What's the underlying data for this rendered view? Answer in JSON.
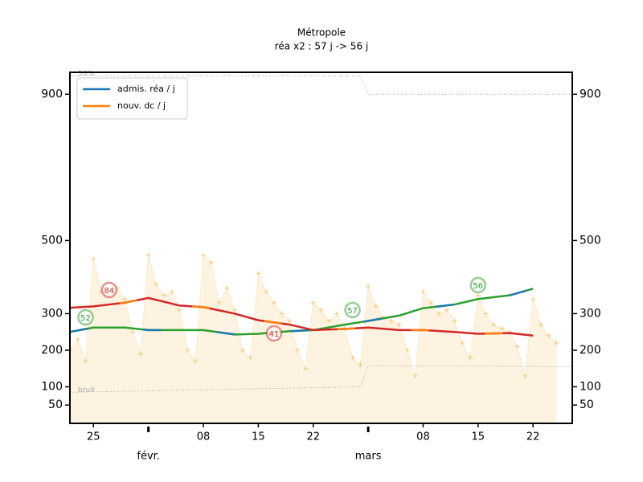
{
  "chart_data": {
    "type": "line",
    "title": "Métropole",
    "subtitle": "réa x2 : 57 j -> 56 j",
    "xlim": [
      "01-22",
      "03-27"
    ],
    "ylim": [
      0,
      960
    ],
    "yticks": [
      50,
      100,
      200,
      300,
      500,
      900
    ],
    "xticks": [
      {
        "value": "01-25",
        "label": "25"
      },
      {
        "value": "02-08",
        "label": "08"
      },
      {
        "value": "02-15",
        "label": "15"
      },
      {
        "value": "02-22",
        "label": "22"
      },
      {
        "value": "03-08",
        "label": "08"
      },
      {
        "value": "03-15",
        "label": "15"
      },
      {
        "value": "03-22",
        "label": "22"
      }
    ],
    "month_ticks": [
      {
        "value": "02-01",
        "label": "févr."
      },
      {
        "value": "03-01",
        "label": "mars"
      }
    ],
    "legend": "upper left",
    "raw": {
      "color": "#f5c97a",
      "fill": "#fdf3e0",
      "x": [
        "01-22",
        "01-23",
        "01-24",
        "01-25",
        "01-26",
        "01-27",
        "01-28",
        "01-29",
        "01-30",
        "01-31",
        "02-01",
        "02-02",
        "02-03",
        "02-04",
        "02-05",
        "02-06",
        "02-07",
        "02-08",
        "02-09",
        "02-10",
        "02-11",
        "02-12",
        "02-13",
        "02-14",
        "02-15",
        "02-16",
        "02-17",
        "02-18",
        "02-19",
        "02-20",
        "02-21",
        "02-22",
        "02-23",
        "02-24",
        "02-25",
        "02-26",
        "02-27",
        "02-28",
        "03-01",
        "03-02",
        "03-03",
        "03-04",
        "03-05",
        "03-06",
        "03-07",
        "03-08",
        "03-09",
        "03-10",
        "03-11",
        "03-12",
        "03-13",
        "03-14",
        "03-15",
        "03-16",
        "03-17",
        "03-18",
        "03-19",
        "03-20",
        "03-21",
        "03-22",
        "03-23",
        "03-24",
        "03-25"
      ],
      "values": [
        200,
        230,
        170,
        450,
        360,
        350,
        370,
        340,
        250,
        190,
        460,
        380,
        350,
        360,
        310,
        200,
        170,
        460,
        440,
        330,
        370,
        310,
        200,
        180,
        410,
        360,
        330,
        300,
        280,
        200,
        150,
        330,
        310,
        280,
        300,
        260,
        180,
        160,
        375,
        320,
        290,
        280,
        270,
        200,
        130,
        360,
        330,
        300,
        310,
        280,
        220,
        180,
        350,
        300,
        270,
        260,
        250,
        210,
        130,
        340,
        270,
        240,
        220
      ]
    },
    "x": [
      "01-22",
      "01-25",
      "01-29",
      "02-01",
      "02-05",
      "02-08",
      "02-12",
      "02-15",
      "02-19",
      "02-22",
      "02-26",
      "03-01",
      "03-05",
      "03-08",
      "03-12",
      "03-15",
      "03-19",
      "03-22"
    ],
    "series": [
      {
        "name": "admis. réa / j",
        "color": "#1f77b4",
        "trend_color": "#2ca02c",
        "values": [
          250,
          262,
          262,
          255,
          255,
          255,
          243,
          245,
          252,
          255,
          270,
          280,
          295,
          315,
          325,
          340,
          350,
          368
        ]
      },
      {
        "name": "nouv. dc / j",
        "color": "#ff7f0e",
        "trend_color": "#d62728",
        "values": [
          316,
          320,
          330,
          343,
          322,
          318,
          300,
          282,
          270,
          255,
          258,
          262,
          255,
          255,
          250,
          245,
          247,
          240
        ]
      }
    ],
    "thresholds": [
      {
        "label": "50%",
        "x": [
          "01-22",
          "02-28",
          "03-01",
          "03-27"
        ],
        "values": [
          950,
          950,
          900,
          900
        ]
      },
      {
        "label": "bruit",
        "x": [
          "01-22",
          "02-28",
          "03-01",
          "03-27"
        ],
        "values": [
          85,
          100,
          158,
          155
        ]
      }
    ],
    "annotations": [
      {
        "text": "84",
        "x": "01-27",
        "y": 365,
        "color": "#d62728"
      },
      {
        "text": "52",
        "x": "01-24",
        "y": 290,
        "color": "#2ca02c"
      },
      {
        "text": "41",
        "x": "02-17",
        "y": 246,
        "color": "#d62728"
      },
      {
        "text": "57",
        "x": "02-27",
        "y": 310,
        "color": "#2ca02c"
      },
      {
        "text": "56",
        "x": "03-15",
        "y": 378,
        "color": "#2ca02c"
      }
    ]
  }
}
